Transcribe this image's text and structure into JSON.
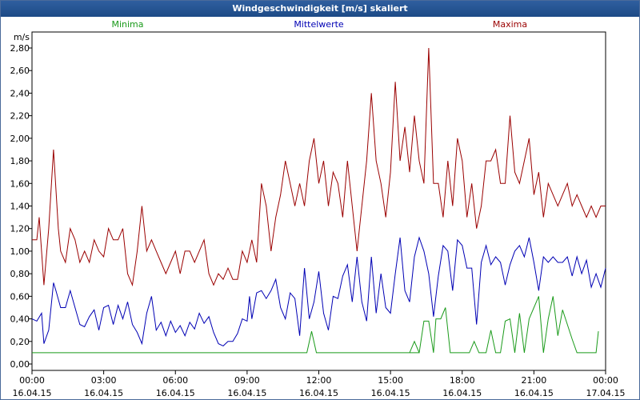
{
  "window": {
    "title": "Windgeschwindigkeit [m/s] skaliert"
  },
  "chart_data": {
    "type": "line",
    "title": "Windgeschwindigkeit [m/s] skaliert",
    "ylabel": "m/s",
    "xlabel": "",
    "ylim": [
      0,
      2.9
    ],
    "xlim": [
      0,
      24
    ],
    "grid": true,
    "y_ticks": [
      {
        "value": 0.0,
        "label": "0,00"
      },
      {
        "value": 0.2,
        "label": "0,20"
      },
      {
        "value": 0.4,
        "label": "0,40"
      },
      {
        "value": 0.6,
        "label": "0,60"
      },
      {
        "value": 0.8,
        "label": "0,80"
      },
      {
        "value": 1.0,
        "label": "1,00"
      },
      {
        "value": 1.2,
        "label": "1,20"
      },
      {
        "value": 1.4,
        "label": "1,40"
      },
      {
        "value": 1.6,
        "label": "1,60"
      },
      {
        "value": 1.8,
        "label": "1,80"
      },
      {
        "value": 2.0,
        "label": "2,00"
      },
      {
        "value": 2.2,
        "label": "2,20"
      },
      {
        "value": 2.4,
        "label": "2,40"
      },
      {
        "value": 2.6,
        "label": "2,60"
      },
      {
        "value": 2.8,
        "label": "2,80"
      }
    ],
    "x_ticks": [
      {
        "value": 0,
        "time": "00:00",
        "date": "16.04.15"
      },
      {
        "value": 3,
        "time": "03:00",
        "date": "16.04.15"
      },
      {
        "value": 6,
        "time": "06:00",
        "date": "16.04.15"
      },
      {
        "value": 9,
        "time": "09:00",
        "date": "16.04.15"
      },
      {
        "value": 12,
        "time": "12:00",
        "date": "16.04.15"
      },
      {
        "value": 15,
        "time": "15:00",
        "date": "16.04.15"
      },
      {
        "value": 18,
        "time": "18:00",
        "date": "16.04.15"
      },
      {
        "value": 21,
        "time": "21:00",
        "date": "16.04.15"
      },
      {
        "value": 24,
        "time": "00:00",
        "date": "17.04.15"
      }
    ],
    "series": [
      {
        "name": "Minima",
        "color": "#1a9a1a",
        "legend_x": 4,
        "points": [
          [
            0,
            0.1
          ],
          [
            11.5,
            0.1
          ],
          [
            11.7,
            0.29
          ],
          [
            11.9,
            0.1
          ],
          [
            15.8,
            0.1
          ],
          [
            16.0,
            0.2
          ],
          [
            16.2,
            0.1
          ],
          [
            15.8,
            0.1
          ],
          [
            16.2,
            0.1
          ],
          [
            16.4,
            0.38
          ],
          [
            16.6,
            0.38
          ],
          [
            16.8,
            0.1
          ],
          [
            16.9,
            0.4
          ],
          [
            17.1,
            0.4
          ],
          [
            17.3,
            0.5
          ],
          [
            17.5,
            0.1
          ],
          [
            18.3,
            0.1
          ],
          [
            18.5,
            0.2
          ],
          [
            18.7,
            0.1
          ],
          [
            19.0,
            0.1
          ],
          [
            19.2,
            0.3
          ],
          [
            19.4,
            0.1
          ],
          [
            19.6,
            0.1
          ],
          [
            19.8,
            0.38
          ],
          [
            20.0,
            0.4
          ],
          [
            20.2,
            0.1
          ],
          [
            20.4,
            0.45
          ],
          [
            20.6,
            0.1
          ],
          [
            20.8,
            0.4
          ],
          [
            21.0,
            0.5
          ],
          [
            21.2,
            0.6
          ],
          [
            21.4,
            0.1
          ],
          [
            21.6,
            0.4
          ],
          [
            21.8,
            0.6
          ],
          [
            22.0,
            0.25
          ],
          [
            22.2,
            0.48
          ],
          [
            22.4,
            0.35
          ],
          [
            22.6,
            0.22
          ],
          [
            22.8,
            0.1
          ],
          [
            23.4,
            0.1
          ],
          [
            23.6,
            0.1
          ],
          [
            23.7,
            0.29
          ]
        ]
      },
      {
        "name": "Mittelwerte",
        "color": "#0000b4",
        "legend_x": 12,
        "points": [
          [
            0,
            0.4
          ],
          [
            0.2,
            0.38
          ],
          [
            0.4,
            0.45
          ],
          [
            0.5,
            0.18
          ],
          [
            0.7,
            0.3
          ],
          [
            0.9,
            0.72
          ],
          [
            1.0,
            0.65
          ],
          [
            1.2,
            0.5
          ],
          [
            1.4,
            0.5
          ],
          [
            1.6,
            0.65
          ],
          [
            1.8,
            0.5
          ],
          [
            2.0,
            0.35
          ],
          [
            2.2,
            0.33
          ],
          [
            2.4,
            0.42
          ],
          [
            2.6,
            0.48
          ],
          [
            2.8,
            0.3
          ],
          [
            3.0,
            0.5
          ],
          [
            3.2,
            0.52
          ],
          [
            3.4,
            0.35
          ],
          [
            3.6,
            0.52
          ],
          [
            3.8,
            0.4
          ],
          [
            4.0,
            0.55
          ],
          [
            4.2,
            0.35
          ],
          [
            4.4,
            0.28
          ],
          [
            4.6,
            0.18
          ],
          [
            4.8,
            0.45
          ],
          [
            5.0,
            0.6
          ],
          [
            5.2,
            0.3
          ],
          [
            5.4,
            0.37
          ],
          [
            5.6,
            0.25
          ],
          [
            5.8,
            0.38
          ],
          [
            6.0,
            0.28
          ],
          [
            6.2,
            0.34
          ],
          [
            6.4,
            0.25
          ],
          [
            6.6,
            0.37
          ],
          [
            6.8,
            0.31
          ],
          [
            7.0,
            0.45
          ],
          [
            7.2,
            0.36
          ],
          [
            7.4,
            0.42
          ],
          [
            7.6,
            0.28
          ],
          [
            7.8,
            0.18
          ],
          [
            8.0,
            0.16
          ],
          [
            8.2,
            0.2
          ],
          [
            8.4,
            0.2
          ],
          [
            8.6,
            0.27
          ],
          [
            8.8,
            0.4
          ],
          [
            9.0,
            0.38
          ],
          [
            9.1,
            0.6
          ],
          [
            9.2,
            0.4
          ],
          [
            9.4,
            0.63
          ],
          [
            9.6,
            0.65
          ],
          [
            9.8,
            0.58
          ],
          [
            10.0,
            0.65
          ],
          [
            10.2,
            0.75
          ],
          [
            10.4,
            0.5
          ],
          [
            10.6,
            0.4
          ],
          [
            10.8,
            0.63
          ],
          [
            11.0,
            0.58
          ],
          [
            11.2,
            0.25
          ],
          [
            11.4,
            0.85
          ],
          [
            11.6,
            0.4
          ],
          [
            11.8,
            0.55
          ],
          [
            12.0,
            0.82
          ],
          [
            12.2,
            0.45
          ],
          [
            12.4,
            0.3
          ],
          [
            12.6,
            0.6
          ],
          [
            12.8,
            0.58
          ],
          [
            13.0,
            0.78
          ],
          [
            13.2,
            0.88
          ],
          [
            13.4,
            0.55
          ],
          [
            13.6,
            0.95
          ],
          [
            13.8,
            0.55
          ],
          [
            14.0,
            0.38
          ],
          [
            14.2,
            0.95
          ],
          [
            14.4,
            0.45
          ],
          [
            14.6,
            0.8
          ],
          [
            14.8,
            0.5
          ],
          [
            15.0,
            0.45
          ],
          [
            15.2,
            0.8
          ],
          [
            15.4,
            1.12
          ],
          [
            15.6,
            0.65
          ],
          [
            15.8,
            0.55
          ],
          [
            16.0,
            0.95
          ],
          [
            16.2,
            1.12
          ],
          [
            16.4,
            1.0
          ],
          [
            16.6,
            0.8
          ],
          [
            16.8,
            0.42
          ],
          [
            17.0,
            0.78
          ],
          [
            17.2,
            1.05
          ],
          [
            17.4,
            1.0
          ],
          [
            17.6,
            0.65
          ],
          [
            17.8,
            1.1
          ],
          [
            18.0,
            1.05
          ],
          [
            18.2,
            0.85
          ],
          [
            18.4,
            0.85
          ],
          [
            18.6,
            0.35
          ],
          [
            18.8,
            0.9
          ],
          [
            19.0,
            1.05
          ],
          [
            19.2,
            0.88
          ],
          [
            19.4,
            0.95
          ],
          [
            19.6,
            0.9
          ],
          [
            19.8,
            0.7
          ],
          [
            20.0,
            0.88
          ],
          [
            20.2,
            1.0
          ],
          [
            20.4,
            1.05
          ],
          [
            20.6,
            0.95
          ],
          [
            20.8,
            1.12
          ],
          [
            21.0,
            0.9
          ],
          [
            21.2,
            0.65
          ],
          [
            21.4,
            0.95
          ],
          [
            21.6,
            0.9
          ],
          [
            21.8,
            0.95
          ],
          [
            22.0,
            0.9
          ],
          [
            22.2,
            0.9
          ],
          [
            22.4,
            0.95
          ],
          [
            22.6,
            0.78
          ],
          [
            22.8,
            0.95
          ],
          [
            23.0,
            0.8
          ],
          [
            23.2,
            0.92
          ],
          [
            23.4,
            0.68
          ],
          [
            23.6,
            0.8
          ],
          [
            23.8,
            0.68
          ],
          [
            24.0,
            0.85
          ]
        ]
      },
      {
        "name": "Maxima",
        "color": "#9a0000",
        "legend_x": 20,
        "points": [
          [
            0,
            1.1
          ],
          [
            0.2,
            1.1
          ],
          [
            0.3,
            1.3
          ],
          [
            0.5,
            0.7
          ],
          [
            0.7,
            1.2
          ],
          [
            0.9,
            1.9
          ],
          [
            1.1,
            1.2
          ],
          [
            1.2,
            1.0
          ],
          [
            1.4,
            0.9
          ],
          [
            1.6,
            1.2
          ],
          [
            1.8,
            1.1
          ],
          [
            2.0,
            0.9
          ],
          [
            2.2,
            1.0
          ],
          [
            2.4,
            0.9
          ],
          [
            2.6,
            1.1
          ],
          [
            2.8,
            1.0
          ],
          [
            3.0,
            0.95
          ],
          [
            3.2,
            1.2
          ],
          [
            3.4,
            1.1
          ],
          [
            3.6,
            1.1
          ],
          [
            3.8,
            1.2
          ],
          [
            4.0,
            0.8
          ],
          [
            4.2,
            0.7
          ],
          [
            4.4,
            1.0
          ],
          [
            4.6,
            1.4
          ],
          [
            4.8,
            1.0
          ],
          [
            5.0,
            1.1
          ],
          [
            5.2,
            1.0
          ],
          [
            5.4,
            0.9
          ],
          [
            5.6,
            0.8
          ],
          [
            5.8,
            0.9
          ],
          [
            6.0,
            1.0
          ],
          [
            6.2,
            0.8
          ],
          [
            6.4,
            1.0
          ],
          [
            6.6,
            1.0
          ],
          [
            6.8,
            0.9
          ],
          [
            7.0,
            1.0
          ],
          [
            7.2,
            1.1
          ],
          [
            7.4,
            0.8
          ],
          [
            7.6,
            0.7
          ],
          [
            7.8,
            0.8
          ],
          [
            8.0,
            0.75
          ],
          [
            8.2,
            0.85
          ],
          [
            8.4,
            0.75
          ],
          [
            8.6,
            0.75
          ],
          [
            8.8,
            1.0
          ],
          [
            9.0,
            0.9
          ],
          [
            9.2,
            1.1
          ],
          [
            9.4,
            0.9
          ],
          [
            9.6,
            1.6
          ],
          [
            9.8,
            1.4
          ],
          [
            10.0,
            1.0
          ],
          [
            10.2,
            1.3
          ],
          [
            10.4,
            1.5
          ],
          [
            10.6,
            1.8
          ],
          [
            10.8,
            1.6
          ],
          [
            11.0,
            1.4
          ],
          [
            11.2,
            1.6
          ],
          [
            11.4,
            1.4
          ],
          [
            11.6,
            1.8
          ],
          [
            11.8,
            2.0
          ],
          [
            12.0,
            1.6
          ],
          [
            12.2,
            1.8
          ],
          [
            12.4,
            1.4
          ],
          [
            12.6,
            1.7
          ],
          [
            12.8,
            1.6
          ],
          [
            13.0,
            1.3
          ],
          [
            13.2,
            1.8
          ],
          [
            13.4,
            1.4
          ],
          [
            13.6,
            1.0
          ],
          [
            13.8,
            1.4
          ],
          [
            14.0,
            1.8
          ],
          [
            14.2,
            2.4
          ],
          [
            14.4,
            1.8
          ],
          [
            14.6,
            1.6
          ],
          [
            14.8,
            1.3
          ],
          [
            15.0,
            1.7
          ],
          [
            15.2,
            2.5
          ],
          [
            15.4,
            1.8
          ],
          [
            15.6,
            2.1
          ],
          [
            15.8,
            1.7
          ],
          [
            16.0,
            2.2
          ],
          [
            16.2,
            1.8
          ],
          [
            16.4,
            1.6
          ],
          [
            16.6,
            2.8
          ],
          [
            16.8,
            1.6
          ],
          [
            17.0,
            1.6
          ],
          [
            17.2,
            1.3
          ],
          [
            17.4,
            1.8
          ],
          [
            17.6,
            1.4
          ],
          [
            17.8,
            2.0
          ],
          [
            18.0,
            1.8
          ],
          [
            18.2,
            1.3
          ],
          [
            18.4,
            1.6
          ],
          [
            18.6,
            1.2
          ],
          [
            18.8,
            1.4
          ],
          [
            19.0,
            1.8
          ],
          [
            19.2,
            1.8
          ],
          [
            19.4,
            1.9
          ],
          [
            19.6,
            1.6
          ],
          [
            19.8,
            1.6
          ],
          [
            20.0,
            2.2
          ],
          [
            20.2,
            1.7
          ],
          [
            20.4,
            1.6
          ],
          [
            20.6,
            1.8
          ],
          [
            20.8,
            2.0
          ],
          [
            21.0,
            1.5
          ],
          [
            21.2,
            1.7
          ],
          [
            21.4,
            1.3
          ],
          [
            21.6,
            1.6
          ],
          [
            21.8,
            1.5
          ],
          [
            22.0,
            1.4
          ],
          [
            22.2,
            1.5
          ],
          [
            22.4,
            1.6
          ],
          [
            22.6,
            1.4
          ],
          [
            22.8,
            1.5
          ],
          [
            23.0,
            1.4
          ],
          [
            23.2,
            1.3
          ],
          [
            23.4,
            1.4
          ],
          [
            23.6,
            1.3
          ],
          [
            23.8,
            1.4
          ],
          [
            24.0,
            1.4
          ]
        ]
      }
    ]
  }
}
